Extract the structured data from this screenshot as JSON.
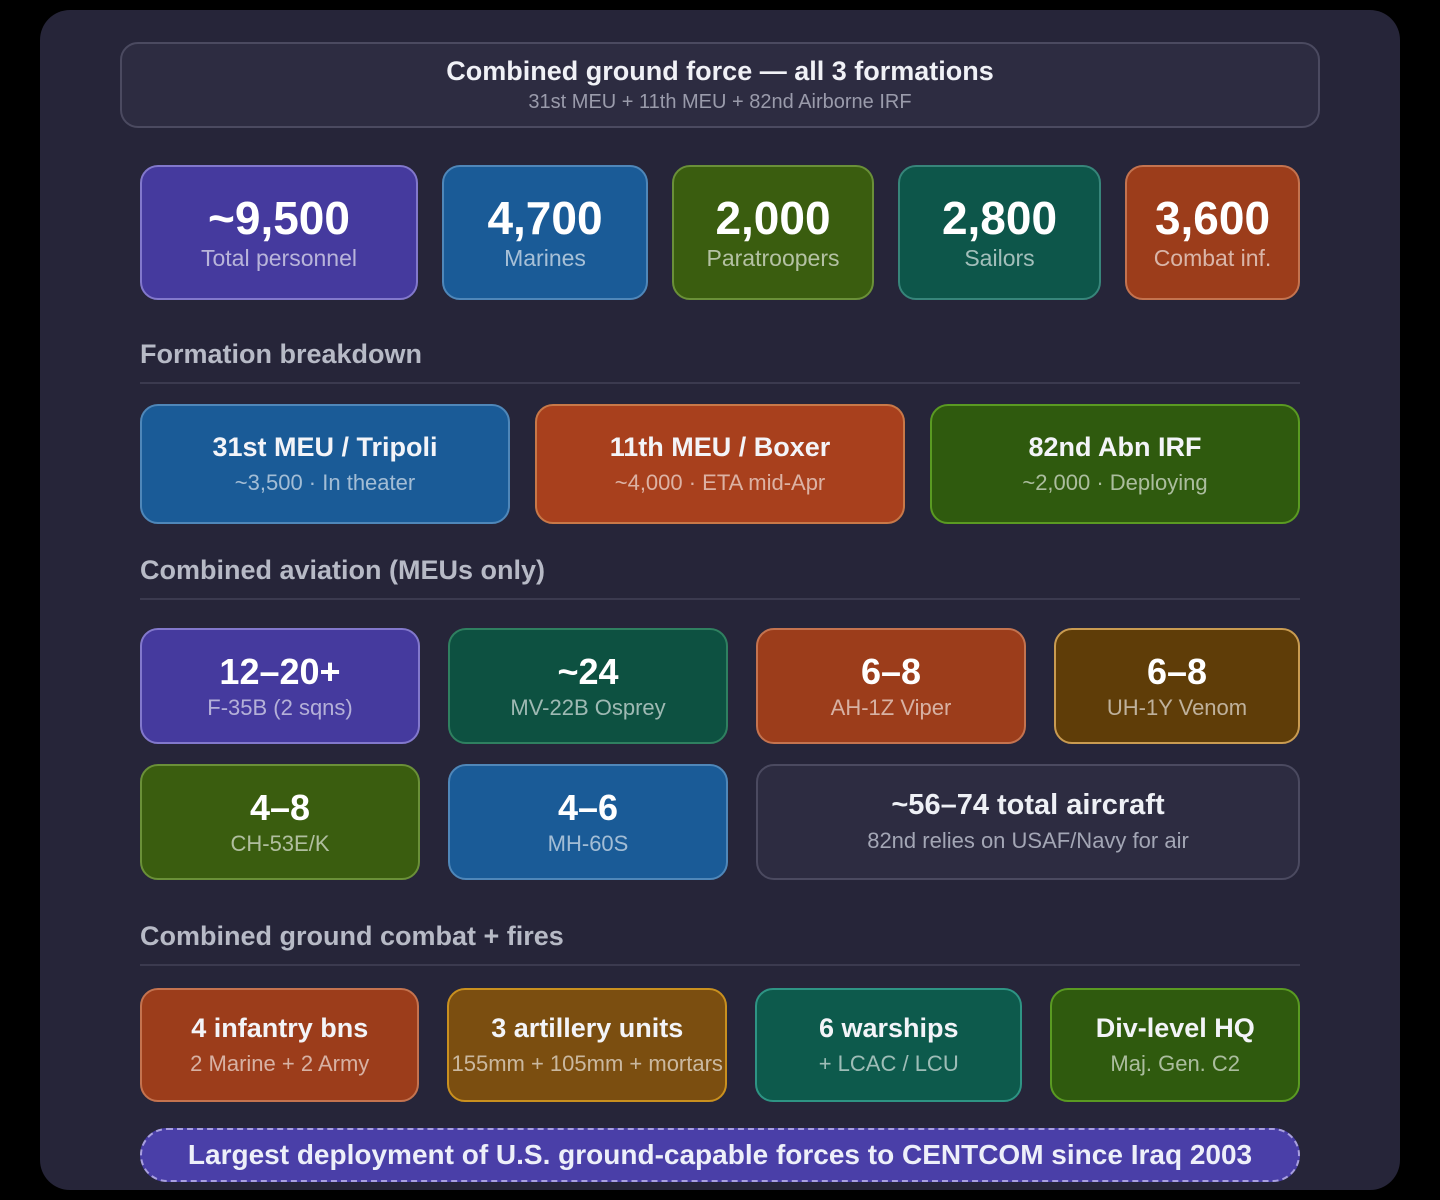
{
  "palette": {
    "slate": {
      "bg": "#2d2c41",
      "border": "#4b4a60"
    },
    "purple": {
      "bg": "#453a9e",
      "border": "#8278cc"
    },
    "blue": {
      "bg": "#1a5b97",
      "border": "#4f87b9"
    },
    "green": {
      "bg": "#3a5d0f",
      "border": "#6a9038"
    },
    "darkgreen": {
      "bg": "#2f5a0e",
      "border": "#5a9a22"
    },
    "teal": {
      "bg": "#0d564a",
      "border": "#37857a"
    },
    "seagreen": {
      "bg": "#0d5141",
      "border": "#2f8060"
    },
    "brightteal": {
      "bg": "#0d5a4c",
      "border": "#2e9484"
    },
    "rust": {
      "bg": "#9c3d1b",
      "border": "#c4734f"
    },
    "orange": {
      "bg": "#a8401d",
      "border": "#c87848"
    },
    "gold": {
      "bg": "#5f3d08",
      "border": "#c99b51"
    },
    "amber": {
      "bg": "#7b4e10",
      "border": "#c9901f"
    },
    "banner": {
      "bg": "#4a3fa8",
      "border": "#a89fe0"
    },
    "panel_bg": "#262539",
    "page_bg": "#000000",
    "divider": "#3b3a4f"
  },
  "header": {
    "title": "Combined ground force — all 3 formations",
    "subtitle": "31st MEU + 11th MEU + 82nd Airborne IRF"
  },
  "stats": [
    {
      "value": "~9,500",
      "label": "Total personnel",
      "color": "purple"
    },
    {
      "value": "4,700",
      "label": "Marines",
      "color": "blue"
    },
    {
      "value": "2,000",
      "label": "Paratroopers",
      "color": "green"
    },
    {
      "value": "2,800",
      "label": "Sailors",
      "color": "teal"
    },
    {
      "value": "3,600",
      "label": "Combat inf.",
      "color": "rust"
    }
  ],
  "formation": {
    "heading": "Formation breakdown",
    "cards": [
      {
        "title": "31st MEU / Tripoli",
        "subtitle": "~3,500 · In theater",
        "color": "blue"
      },
      {
        "title": "11th MEU / Boxer",
        "subtitle": "~4,000 · ETA mid-Apr",
        "color": "orange"
      },
      {
        "title": "82nd Abn IRF",
        "subtitle": "~2,000 · Deploying",
        "color": "darkgreen"
      }
    ]
  },
  "aviation": {
    "heading": "Combined aviation (MEUs only)",
    "cards": [
      {
        "value": "12–20+",
        "label": "F-35B (2 sqns)",
        "color": "purple"
      },
      {
        "value": "~24",
        "label": "MV-22B Osprey",
        "color": "seagreen"
      },
      {
        "value": "6–8",
        "label": "AH-1Z Viper",
        "color": "rust"
      },
      {
        "value": "6–8",
        "label": "UH-1Y Venom",
        "color": "gold"
      },
      {
        "value": "4–8",
        "label": "CH-53E/K",
        "color": "green"
      },
      {
        "value": "4–6",
        "label": "MH-60S",
        "color": "blue"
      }
    ],
    "note": {
      "title": "~56–74 total aircraft",
      "subtitle": "82nd relies on USAF/Navy for air",
      "color": "slate"
    }
  },
  "ground": {
    "heading": "Combined ground combat + fires",
    "cards": [
      {
        "title": "4 infantry bns",
        "subtitle": "2 Marine + 2 Army",
        "color": "rust"
      },
      {
        "title": "3 artillery units",
        "subtitle": "155mm + 105mm + mortars",
        "color": "amber"
      },
      {
        "title": "6 warships",
        "subtitle": "+ LCAC / LCU",
        "color": "brightteal"
      },
      {
        "title": "Div-level HQ",
        "subtitle": "Maj. Gen. C2",
        "color": "darkgreen"
      }
    ]
  },
  "footer": {
    "text": "Largest deployment of U.S. ground-capable forces to CENTCOM since Iraq 2003"
  },
  "chart_data": {
    "type": "table",
    "title": "Combined ground force — all 3 formations",
    "subtitle": "31st MEU + 11th MEU + 82nd Airborne IRF",
    "personnel": {
      "total": "~9,500",
      "marines": 4700,
      "paratroopers": 2000,
      "sailors": 2800,
      "combat_infantry": 3600
    },
    "formations": [
      {
        "name": "31st MEU / Tripoli",
        "personnel": "~3,500",
        "status": "In theater"
      },
      {
        "name": "11th MEU / Boxer",
        "personnel": "~4,000",
        "status": "ETA mid-Apr"
      },
      {
        "name": "82nd Abn IRF",
        "personnel": "~2,000",
        "status": "Deploying"
      }
    ],
    "aviation_meus_only": [
      {
        "aircraft": "F-35B (2 sqns)",
        "count": "12–20+"
      },
      {
        "aircraft": "MV-22B Osprey",
        "count": "~24"
      },
      {
        "aircraft": "AH-1Z Viper",
        "count": "6–8"
      },
      {
        "aircraft": "UH-1Y Venom",
        "count": "6–8"
      },
      {
        "aircraft": "CH-53E/K",
        "count": "4–8"
      },
      {
        "aircraft": "MH-60S",
        "count": "4–6"
      }
    ],
    "aviation_total": {
      "count": "~56–74",
      "note": "82nd relies on USAF/Navy for air"
    },
    "ground_combat_fires": [
      {
        "unit": "4 infantry bns",
        "detail": "2 Marine + 2 Army"
      },
      {
        "unit": "3 artillery units",
        "detail": "155mm + 105mm + mortars"
      },
      {
        "unit": "6 warships",
        "detail": "+ LCAC / LCU"
      },
      {
        "unit": "Div-level HQ",
        "detail": "Maj. Gen. C2"
      }
    ],
    "callout": "Largest deployment of U.S. ground-capable forces to CENTCOM since Iraq 2003"
  }
}
